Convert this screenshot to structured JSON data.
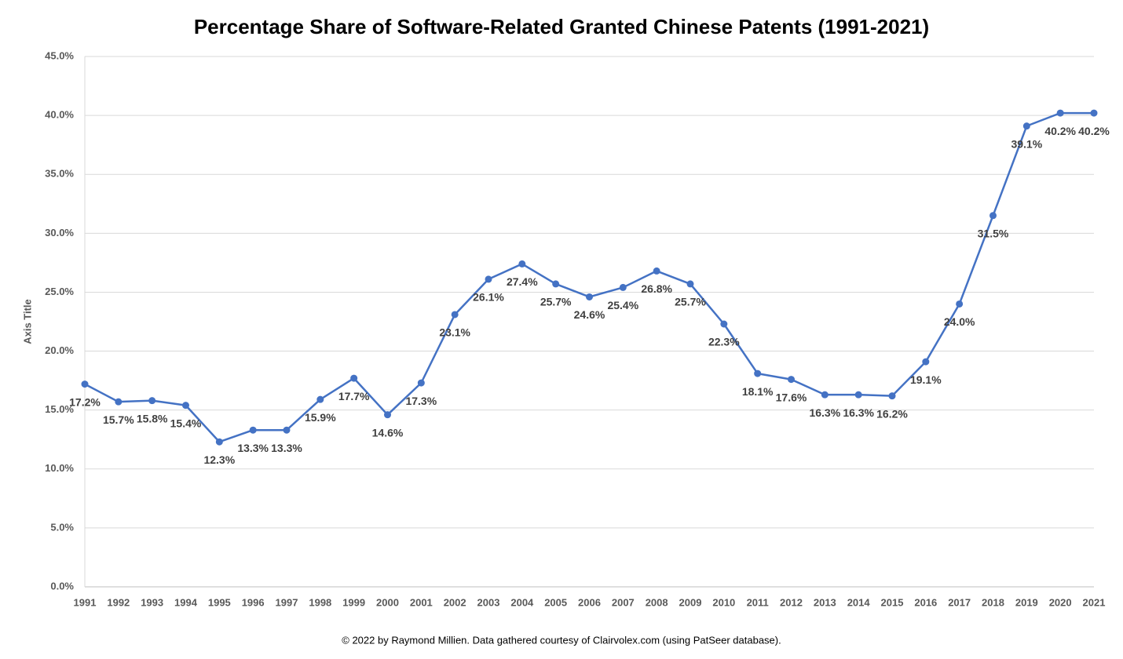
{
  "chart_data": {
    "type": "line",
    "title": "Percentage Share of Software-Related Granted Chinese Patents (1991-2021)",
    "y_label": "Axis Title",
    "footnote": "© 2022 by Raymond Millien. Data gathered courtesy of Clairvolex.com (using PatSeer database).",
    "categories": [
      "1991",
      "1992",
      "1993",
      "1994",
      "1995",
      "1996",
      "1997",
      "1998",
      "1999",
      "2000",
      "2001",
      "2002",
      "2003",
      "2004",
      "2005",
      "2006",
      "2007",
      "2008",
      "2009",
      "2010",
      "2011",
      "2012",
      "2013",
      "2014",
      "2015",
      "2016",
      "2017",
      "2018",
      "2019",
      "2020",
      "2021"
    ],
    "values": [
      17.2,
      15.7,
      15.8,
      15.4,
      12.3,
      13.3,
      13.3,
      15.9,
      17.7,
      14.6,
      17.3,
      23.1,
      26.1,
      27.4,
      25.7,
      24.6,
      25.4,
      26.8,
      25.7,
      22.3,
      18.1,
      17.6,
      16.3,
      16.3,
      16.2,
      19.1,
      24.0,
      31.5,
      39.1,
      40.2,
      40.2
    ],
    "value_labels": [
      "17.2%",
      "15.7%",
      "15.8%",
      "15.4%",
      "12.3%",
      "13.3%",
      "13.3%",
      "15.9%",
      "17.7%",
      "14.6%",
      "17.3%",
      "23.1%",
      "26.1%",
      "27.4%",
      "25.7%",
      "24.6%",
      "25.4%",
      "26.8%",
      "25.7%",
      "22.3%",
      "18.1%",
      "17.6%",
      "16.3%",
      "16.3%",
      "16.2%",
      "19.1%",
      "24.0%",
      "31.5%",
      "39.1%",
      "40.2%",
      "40.2%"
    ],
    "color": "#4472c4",
    "ylim": [
      0,
      45
    ],
    "yticks": [
      {
        "value": 0,
        "label": "0.0%"
      },
      {
        "value": 5,
        "label": "5.0%"
      },
      {
        "value": 10,
        "label": "10.0%"
      },
      {
        "value": 15,
        "label": "15.0%"
      },
      {
        "value": 20,
        "label": "20.0%"
      },
      {
        "value": 25,
        "label": "25.0%"
      },
      {
        "value": 30,
        "label": "30.0%"
      },
      {
        "value": 35,
        "label": "35.0%"
      },
      {
        "value": 40,
        "label": "40.0%"
      },
      {
        "value": 45,
        "label": "45.0%"
      }
    ],
    "grid": true
  }
}
